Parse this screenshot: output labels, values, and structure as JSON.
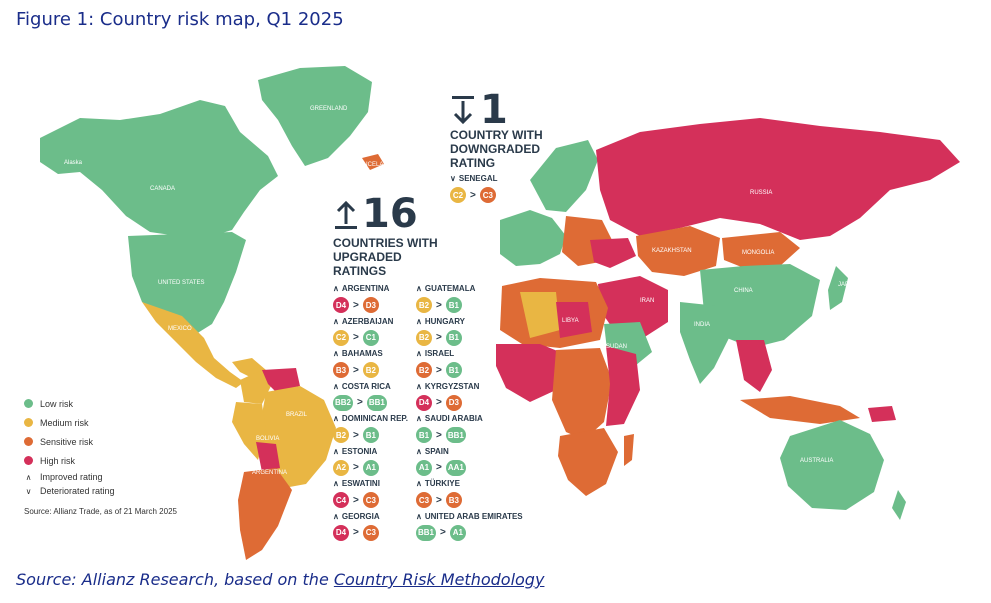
{
  "figure": {
    "title": "Figure 1: Country risk map, Q1 2025"
  },
  "colors": {
    "low": "#6cbd8a",
    "medium": "#e9b643",
    "sensitive": "#de6b35",
    "high": "#d4305a",
    "text": "#2a3a4a",
    "title": "#1a2d8a"
  },
  "legend": {
    "items": [
      {
        "label": "Low risk",
        "color": "#6cbd8a"
      },
      {
        "label": "Medium risk",
        "color": "#e9b643"
      },
      {
        "label": "Sensitive risk",
        "color": "#de6b35"
      },
      {
        "label": "High risk",
        "color": "#d4305a"
      }
    ],
    "improved": "Improved rating",
    "deteriorated": "Deteriorated rating",
    "source": "Source: Allianz Trade, as of 21 March 2025"
  },
  "upgraded": {
    "count": "16",
    "line1": "COUNTRIES WITH",
    "line2": "UPGRADED",
    "line3": "RATINGS",
    "entries": [
      {
        "country": "ARGENTINA",
        "from": "D4",
        "to": "D3",
        "from_color": "#d4305a",
        "to_color": "#de6b35"
      },
      {
        "country": "AZERBAIJAN",
        "from": "C2",
        "to": "C1",
        "from_color": "#e9b643",
        "to_color": "#6cbd8a"
      },
      {
        "country": "BAHAMAS",
        "from": "B3",
        "to": "B2",
        "from_color": "#de6b35",
        "to_color": "#e9b643"
      },
      {
        "country": "COSTA RICA",
        "from": "BB2",
        "to": "BB1",
        "from_color": "#6cbd8a",
        "to_color": "#6cbd8a"
      },
      {
        "country": "DOMINICAN REP.",
        "from": "B2",
        "to": "B1",
        "from_color": "#e9b643",
        "to_color": "#6cbd8a"
      },
      {
        "country": "ESTONIA",
        "from": "A2",
        "to": "A1",
        "from_color": "#e9b643",
        "to_color": "#6cbd8a"
      },
      {
        "country": "ESWATINI",
        "from": "C4",
        "to": "C3",
        "from_color": "#d4305a",
        "to_color": "#de6b35"
      },
      {
        "country": "GEORGIA",
        "from": "D4",
        "to": "C3",
        "from_color": "#d4305a",
        "to_color": "#de6b35"
      },
      {
        "country": "GUATEMALA",
        "from": "B2",
        "to": "B1",
        "from_color": "#e9b643",
        "to_color": "#6cbd8a"
      },
      {
        "country": "HUNGARY",
        "from": "B2",
        "to": "B1",
        "from_color": "#e9b643",
        "to_color": "#6cbd8a"
      },
      {
        "country": "ISRAEL",
        "from": "B2",
        "to": "B1",
        "from_color": "#de6b35",
        "to_color": "#6cbd8a"
      },
      {
        "country": "KYRGYZSTAN",
        "from": "D4",
        "to": "D3",
        "from_color": "#d4305a",
        "to_color": "#de6b35"
      },
      {
        "country": "SAUDI ARABIA",
        "from": "B1",
        "to": "BB1",
        "from_color": "#6cbd8a",
        "to_color": "#6cbd8a"
      },
      {
        "country": "SPAIN",
        "from": "A1",
        "to": "AA1",
        "from_color": "#6cbd8a",
        "to_color": "#6cbd8a"
      },
      {
        "country": "TÜRKIYE",
        "from": "C3",
        "to": "B3",
        "from_color": "#de6b35",
        "to_color": "#de6b35"
      },
      {
        "country": "UNITED ARAB EMIRATES",
        "from": "BB1",
        "to": "A1",
        "from_color": "#6cbd8a",
        "to_color": "#6cbd8a"
      }
    ]
  },
  "downgraded": {
    "count": "1",
    "line1": "COUNTRY WITH",
    "line2": "DOWNGRADED",
    "line3": "RATING",
    "entries": [
      {
        "country": "SENEGAL",
        "from": "C2",
        "to": "C3",
        "from_color": "#e9b643",
        "to_color": "#de6b35"
      }
    ]
  },
  "map_labels": {
    "greenland": "GREENLAND",
    "alaska": "Alaska",
    "canada": "CANADA",
    "usa": "UNITED STATES",
    "mexico": "MEXICO",
    "brazil": "BRAZIL",
    "argentina": "ARGENTINA",
    "bolivia": "BOLIVIA",
    "russia": "RUSSIA",
    "kazakhstan": "KAZAKHSTAN",
    "mongolia": "MONGOLIA",
    "china": "CHINA",
    "india": "INDIA",
    "iran": "IRAN",
    "australia": "AUSTRALIA",
    "libya": "LIBYA",
    "sudan": "SUDAN",
    "japan": "JAPAN",
    "iceland": "ICELAND"
  },
  "source": {
    "prefix": "Source: Allianz Research, based on the ",
    "link": "Country Risk Methodology"
  }
}
